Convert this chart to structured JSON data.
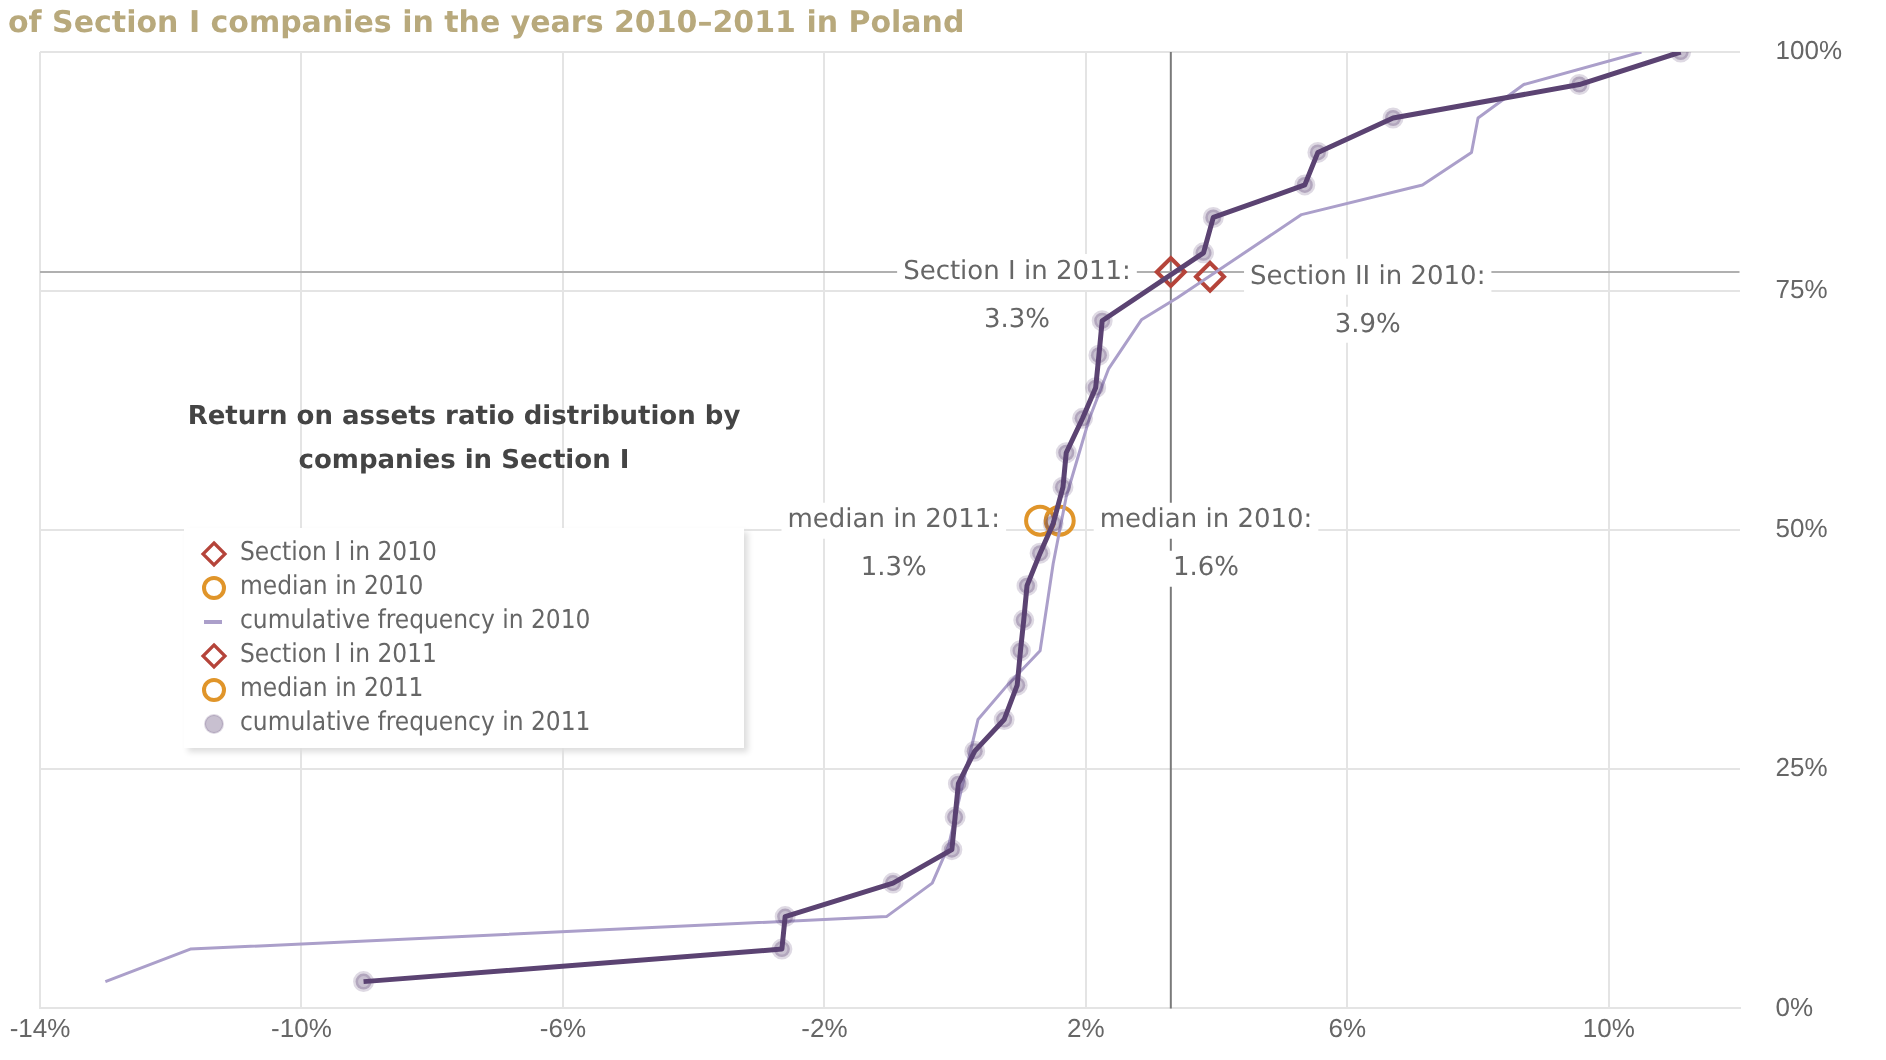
{
  "chart_data": {
    "type": "line",
    "title": "of Section I companies in the years 2010–2011 in Poland",
    "legend_title": "Return on assets ratio distribution by companies in Section I",
    "legend": "left",
    "grid": true,
    "xlim": [
      -14,
      12
    ],
    "xticks": [
      {
        "value": -14,
        "label": "-14%"
      },
      {
        "value": -10,
        "label": "-10%"
      },
      {
        "value": -6,
        "label": "-6%"
      },
      {
        "value": -2,
        "label": "-2%"
      },
      {
        "value": 2,
        "label": "2%"
      },
      {
        "value": 6,
        "label": "6%"
      },
      {
        "value": 10,
        "label": "10%"
      }
    ],
    "ylim": [
      0,
      100
    ],
    "yticks": [
      {
        "value": 0,
        "label": "0%"
      },
      {
        "value": 25,
        "label": "25%"
      },
      {
        "value": 50,
        "label": "50%"
      },
      {
        "value": 75,
        "label": "75%"
      },
      {
        "value": 100,
        "label": "100%"
      }
    ],
    "series": [
      {
        "name": "Section I in 2010",
        "type": "scatter",
        "marker": "diamond",
        "color": "#b5443a",
        "x": [
          3.9
        ],
        "values": [
          76.5
        ]
      },
      {
        "name": "median in 2010",
        "type": "scatter",
        "marker": "circle",
        "color": "#e0952a",
        "x": [
          1.6
        ],
        "values": [
          51
        ]
      },
      {
        "name": "cumulative frequency in 2010",
        "type": "line",
        "marker": "none",
        "color": "#ab9fca",
        "x": [
          -13,
          -11.7,
          -1.05,
          -0.35,
          -0.1,
          0.1,
          0.35,
          0.8,
          1.3,
          1.5,
          1.7,
          2.05,
          2.35,
          2.85,
          3.4,
          5.3,
          7.15,
          7.9,
          8.0,
          8.7,
          10.5
        ],
        "values": [
          2.8,
          6.2,
          9.6,
          13.1,
          17,
          23,
          30.2,
          33.8,
          37.4,
          46.5,
          53.5,
          61.6,
          66.9,
          72,
          74.3,
          83,
          86.1,
          89.5,
          93.1,
          96.6,
          100
        ]
      },
      {
        "name": "Section I in 2011",
        "type": "scatter",
        "marker": "diamond",
        "color": "#b5443a",
        "x": [
          3.3
        ],
        "values": [
          77
        ]
      },
      {
        "name": "median in 2011",
        "type": "scatter",
        "marker": "circle",
        "color": "#e0952a",
        "x": [
          1.3
        ],
        "values": [
          51
        ]
      },
      {
        "name": "cumulative frequency in 2011",
        "type": "line",
        "marker": "circle",
        "color": "#5b4372",
        "x": [
          -9.05,
          -2.65,
          -2.6,
          -0.95,
          -0.05,
          0,
          0.05,
          0.3,
          0.75,
          0.95,
          1.0,
          1.05,
          1.1,
          1.3,
          1.5,
          1.65,
          1.7,
          1.95,
          2.15,
          2.2,
          2.25,
          3.8,
          3.95,
          5.35,
          5.55,
          6.7,
          9.55,
          11.1
        ],
        "values": [
          2.8,
          6.2,
          9.6,
          13.1,
          16.6,
          20,
          23.5,
          26.9,
          30.2,
          33.8,
          37.4,
          40.6,
          44.2,
          47.6,
          50.7,
          54.5,
          58.1,
          61.7,
          64.9,
          68.3,
          71.9,
          79,
          82.7,
          86.1,
          89.5,
          93.1,
          96.6,
          100
        ]
      }
    ],
    "ref_lines": [
      {
        "axis": "x",
        "value": 3.3,
        "color": "#7a7a7a"
      },
      {
        "axis": "y",
        "value": 77,
        "color": "#b0b0b0"
      }
    ],
    "annotations": [
      {
        "text": "Section I in 2011:\n3.3%",
        "x": 3.3,
        "y": 77
      },
      {
        "text": "Section II in 2010:\n3.9%",
        "x": 3.9,
        "y": 76.5
      },
      {
        "text": "median in 2011:\n1.3%",
        "x": 1.3,
        "y": 51
      },
      {
        "text": "median in 2010:\n1.6%",
        "x": 1.6,
        "y": 51
      }
    ]
  }
}
